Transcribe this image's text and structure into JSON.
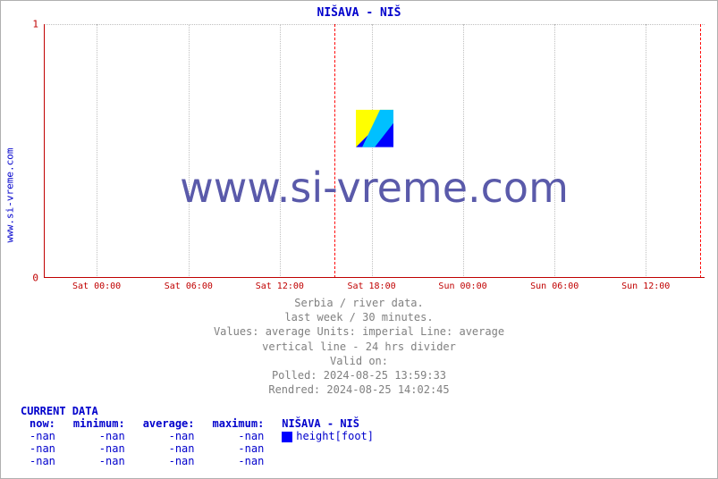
{
  "title": " NIŠAVA -  NIŠ",
  "sidelabel": "www.si-vreme.com",
  "watermark_text": "www.si-vreme.com",
  "chart": {
    "type": "line",
    "background_color": "#ffffff",
    "grid_color": "#c0c0c0",
    "axis_color": "#c00000",
    "divider_color": "#ff0000",
    "ylim": [
      0,
      1
    ],
    "yticks": [
      0,
      1
    ],
    "xticks": [
      "Sat 00:00",
      "Sat 06:00",
      "Sat 12:00",
      "Sat 18:00",
      "Sun 00:00",
      "Sun 06:00",
      "Sun 12:00"
    ],
    "xtick_pos_pct": [
      8.0,
      21.9,
      35.7,
      49.6,
      63.4,
      77.3,
      91.1
    ],
    "divider_pos_pct": [
      44.0,
      99.3
    ],
    "tick_fontsize": 10,
    "label_color": "#c00000",
    "watermark_icon_colors": {
      "yellow": "#ffff00",
      "blue": "#0000ff",
      "cyan": "#00c0ff"
    }
  },
  "info": {
    "l1": "Serbia / river data.",
    "l2": "last week / 30 minutes.",
    "l3": "Values: average  Units: imperial  Line: average",
    "l4": "vertical line - 24 hrs  divider",
    "l5": "Valid on:",
    "l6": "Polled: 2024-08-25 13:59:33",
    "l7": "Rendred: 2024-08-25 14:02:45"
  },
  "current": {
    "heading": "CURRENT DATA",
    "columns": [
      "now:",
      "minimum:",
      "average:",
      "maximum:"
    ],
    "legend_label": " NIŠAVA -  NIŠ",
    "legend_swatch_color": "#0000ff",
    "series_label": "height[foot]",
    "rows": [
      [
        "-nan",
        "-nan",
        "-nan",
        "-nan"
      ],
      [
        "-nan",
        "-nan",
        "-nan",
        "-nan"
      ],
      [
        "-nan",
        "-nan",
        "-nan",
        "-nan"
      ]
    ]
  }
}
